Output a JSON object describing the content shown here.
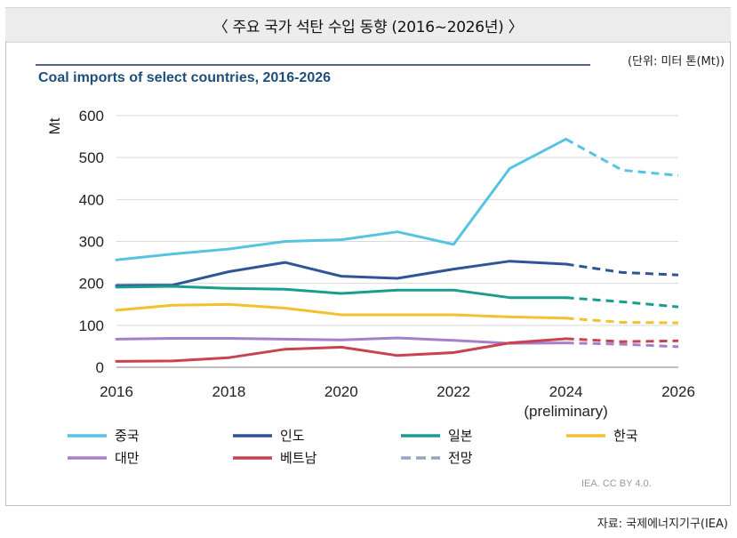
{
  "header": {
    "title": "〈 주요 국가 석탄 수입 동향 (2016~2026년) 〉",
    "unit": "(단위: 미터 톤(Mt))",
    "source": "자료: 국제에너지기구(IEA)"
  },
  "chart_data": {
    "type": "line",
    "title": "Coal imports of select countries, 2016-2026",
    "ylabel": "Mt",
    "xlabel": "",
    "ylim": [
      0,
      600
    ],
    "xlim": [
      2016,
      2026
    ],
    "yticks": [
      "0",
      "100",
      "200",
      "300",
      "400",
      "500",
      "600"
    ],
    "xticks": [
      {
        "value": 2016,
        "label": "2016"
      },
      {
        "value": 2018,
        "label": "2018"
      },
      {
        "value": 2020,
        "label": "2020"
      },
      {
        "value": 2022,
        "label": "2022"
      },
      {
        "value": 2024,
        "label": "2024"
      },
      {
        "value": 2026,
        "label": "2026"
      }
    ],
    "xtick_sublabel": "(preliminary)",
    "grid": "horizontal",
    "forecast_from": 2024,
    "x": [
      2016,
      2017,
      2018,
      2019,
      2020,
      2021,
      2022,
      2023,
      2024,
      2025,
      2026
    ],
    "series": [
      {
        "name": "중국",
        "color": "#57c3e3",
        "values": [
          256,
          270,
          282,
          300,
          304,
          323,
          293,
          474,
          544,
          470,
          457
        ]
      },
      {
        "name": "인도",
        "color": "#2f5597",
        "values": [
          195,
          196,
          228,
          250,
          217,
          212,
          234,
          253,
          246,
          226,
          220
        ]
      },
      {
        "name": "일본",
        "color": "#1a9d8f",
        "values": [
          191,
          193,
          188,
          186,
          176,
          184,
          184,
          166,
          166,
          156,
          144
        ]
      },
      {
        "name": "한국",
        "color": "#f2c12e",
        "values": [
          136,
          148,
          150,
          141,
          125,
          125,
          125,
          120,
          117,
          107,
          106
        ]
      },
      {
        "name": "대만",
        "color": "#a57fcc",
        "values": [
          67,
          69,
          69,
          67,
          65,
          70,
          64,
          57,
          58,
          55,
          49
        ]
      },
      {
        "name": "베트남",
        "color": "#c9424f",
        "values": [
          14,
          15,
          23,
          43,
          48,
          28,
          35,
          58,
          68,
          61,
          63
        ]
      }
    ],
    "legend": {
      "position": "bottom",
      "items": [
        {
          "name": "중국",
          "color": "#57c3e3",
          "style": "solid"
        },
        {
          "name": "인도",
          "color": "#2f5597",
          "style": "solid"
        },
        {
          "name": "일본",
          "color": "#1a9d8f",
          "style": "solid"
        },
        {
          "name": "한국",
          "color": "#f2c12e",
          "style": "solid"
        },
        {
          "name": "대만",
          "color": "#a57fcc",
          "style": "solid"
        },
        {
          "name": "베트남",
          "color": "#c9424f",
          "style": "solid"
        },
        {
          "name": "전망",
          "color": "#8fa9c4",
          "style": "dashed"
        }
      ]
    },
    "credit": "IEA. CC BY 4.0."
  }
}
